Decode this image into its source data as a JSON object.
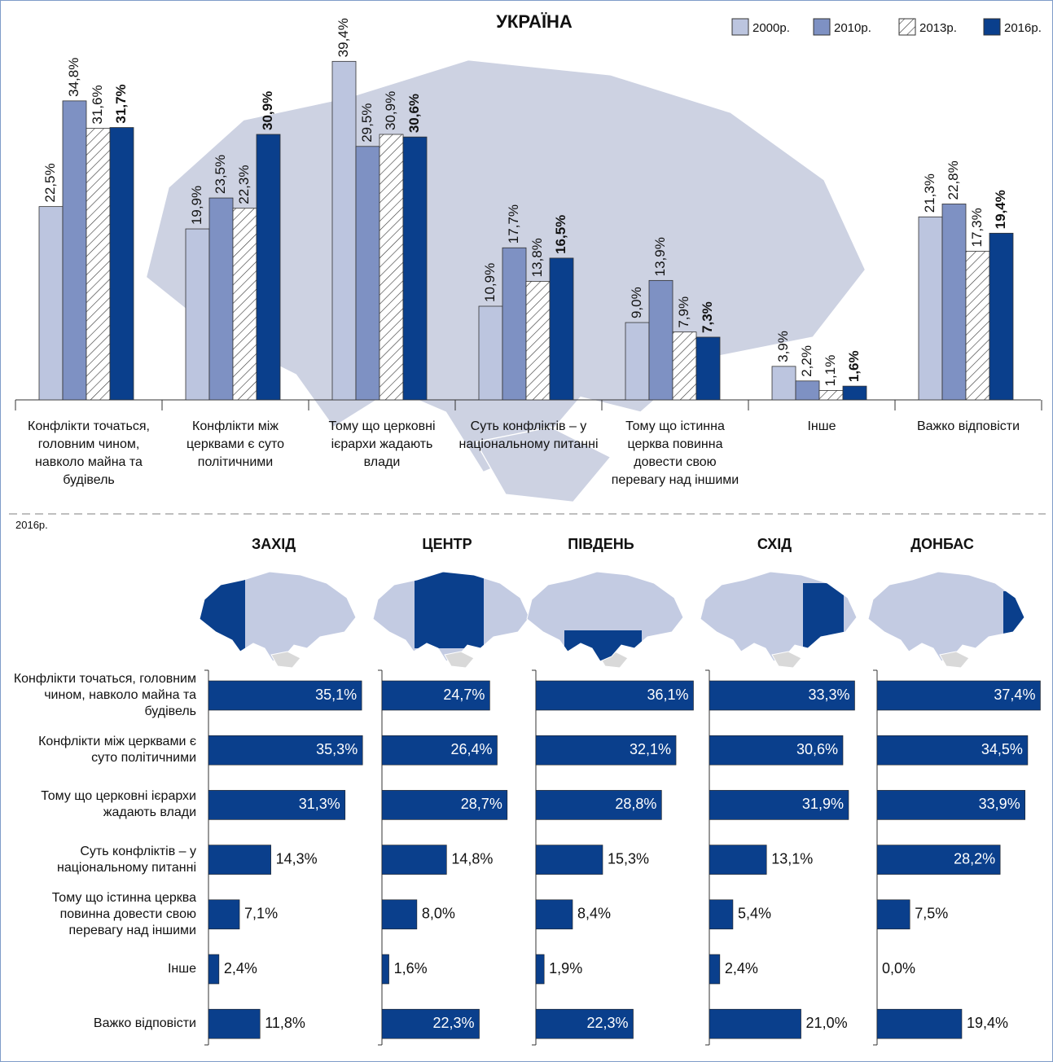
{
  "chart_data": [
    {
      "type": "bar",
      "title": "УКРАЇНА",
      "categories": [
        "Конфлікти точаться, головним чином, навколо майна та будівель",
        "Конфлікти між церквами є суто політичними",
        "Тому що церковні ієрархи жадають влади",
        "Суть конфліктів – у національному питанні",
        "Тому що істинна церква повинна довести свою перевагу над іншими",
        "Інше",
        "Важко відповісти"
      ],
      "series": [
        {
          "name": "2000р.",
          "color": "#bcc5df",
          "values": [
            22.5,
            19.9,
            39.4,
            10.9,
            9.0,
            3.9,
            21.3
          ],
          "value_labels": [
            "22,5%",
            "19,9%",
            "39,4%",
            "10,9%",
            "9,0%",
            "3,9%",
            "21,3%"
          ]
        },
        {
          "name": "2010р.",
          "color": "#7e91c3",
          "values": [
            34.8,
            23.5,
            29.5,
            17.7,
            13.9,
            2.2,
            22.8
          ],
          "value_labels": [
            "34,8%",
            "23,5%",
            "29,5%",
            "17,7%",
            "13,9%",
            "2,2%",
            "22,8%"
          ]
        },
        {
          "name": "2013р.",
          "color": "#ffffff",
          "pattern": "hatch",
          "values": [
            31.6,
            22.3,
            30.9,
            13.8,
            7.9,
            1.1,
            17.3
          ],
          "value_labels": [
            "31,6%",
            "22,3%",
            "30,9%",
            "13,8%",
            "7,9%",
            "1,1%",
            "17,3%"
          ]
        },
        {
          "name": "2016р.",
          "color": "#0a3f8c",
          "bold_labels": true,
          "values": [
            31.7,
            30.9,
            30.6,
            16.5,
            7.3,
            1.6,
            19.4
          ],
          "value_labels": [
            "31,7%",
            "30,9%",
            "30,6%",
            "16,5%",
            "7,3%",
            "1,6%",
            "19,4%"
          ]
        }
      ]
    },
    {
      "type": "bar",
      "orientation": "horizontal",
      "subtitle": "2016р.",
      "categories": [
        "Конфлікти точаться, головним чином, навколо майна та будівель",
        "Конфлікти між церквами є суто політичними",
        "Тому що церковні ієрархи жадають влади",
        "Суть конфліктів – у національному питанні",
        "Тому що істинна церква повинна довести свою перевагу над іншими",
        "Інше",
        "Важко відповісти"
      ],
      "series": [
        {
          "name": "ЗАХІД",
          "color": "#0a3f8c",
          "values": [
            35.1,
            35.3,
            31.3,
            14.3,
            7.1,
            2.4,
            11.8
          ],
          "value_labels": [
            "35,1%",
            "35,3%",
            "31,3%",
            "14,3%",
            "7,1%",
            "2,4%",
            "11,8%"
          ]
        },
        {
          "name": "ЦЕНТР",
          "color": "#0a3f8c",
          "values": [
            24.7,
            26.4,
            28.7,
            14.8,
            8.0,
            1.6,
            22.3
          ],
          "value_labels": [
            "24,7%",
            "26,4%",
            "28,7%",
            "14,8%",
            "8,0%",
            "1,6%",
            "22,3%"
          ]
        },
        {
          "name": "ПІВДЕНЬ",
          "color": "#0a3f8c",
          "values": [
            36.1,
            32.1,
            28.8,
            15.3,
            8.4,
            1.9,
            22.3
          ],
          "value_labels": [
            "36,1%",
            "32,1%",
            "28,8%",
            "15,3%",
            "8,4%",
            "1,9%",
            "22,3%"
          ]
        },
        {
          "name": "СХІД",
          "color": "#0a3f8c",
          "values": [
            33.3,
            30.6,
            31.9,
            13.1,
            5.4,
            2.4,
            21.0
          ],
          "value_labels": [
            "33,3%",
            "30,6%",
            "31,9%",
            "13,1%",
            "5,4%",
            "2,4%",
            "21,0%"
          ]
        },
        {
          "name": "ДОНБАС",
          "color": "#0a3f8c",
          "values": [
            37.4,
            34.5,
            33.9,
            28.2,
            7.5,
            0.0,
            19.4
          ],
          "value_labels": [
            "37,4%",
            "34,5%",
            "33,9%",
            "28,2%",
            "7,5%",
            "0,0%",
            "19,4%"
          ]
        }
      ]
    }
  ]
}
